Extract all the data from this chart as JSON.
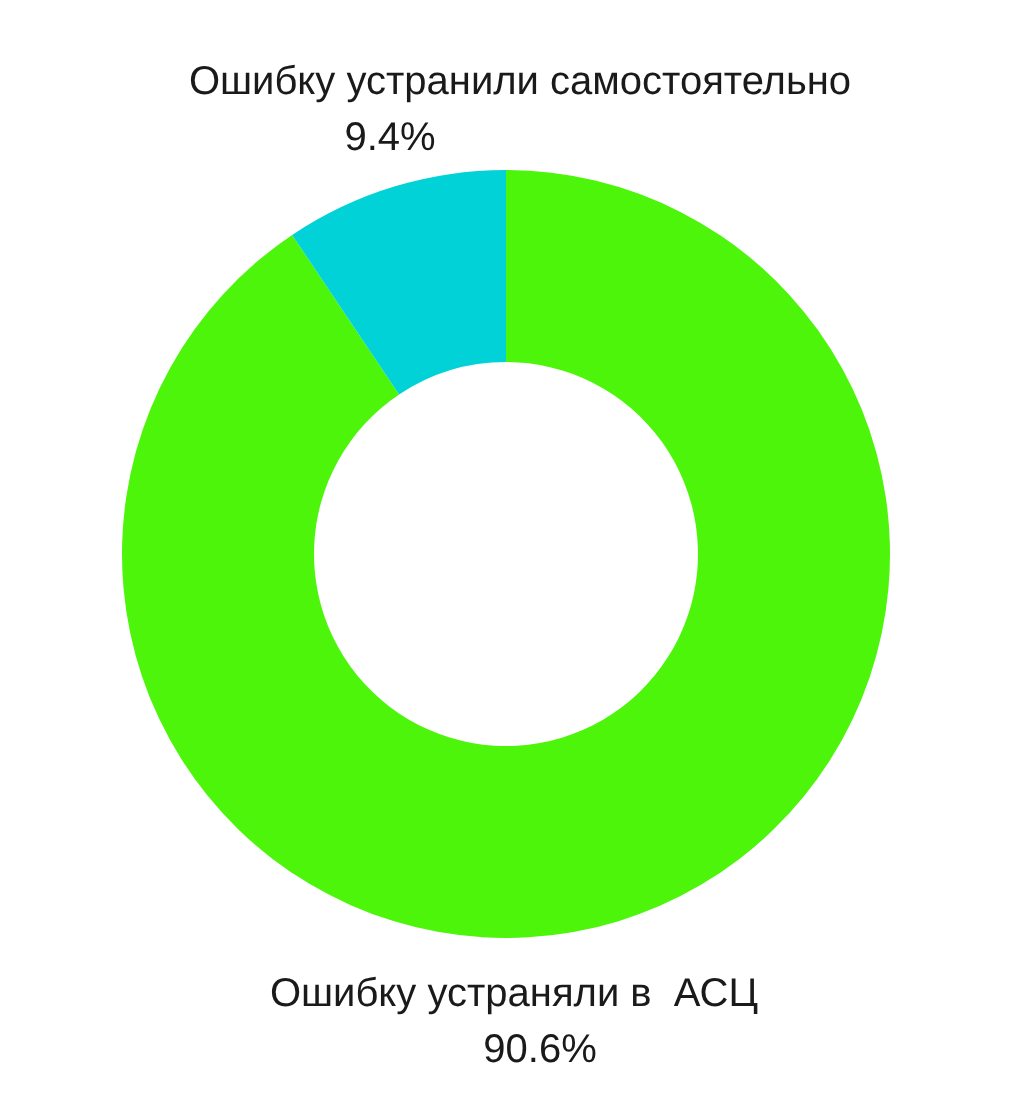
{
  "chart_data": {
    "type": "donut",
    "categories": [
      "Ошибку устраняли в  АСЦ",
      "Ошибку устранили самостоятельно"
    ],
    "values": [
      90.6,
      9.4
    ],
    "colors": [
      "#4df50b",
      "#00d2d8"
    ],
    "value_labels": [
      "90.6%",
      "9.4%"
    ]
  }
}
